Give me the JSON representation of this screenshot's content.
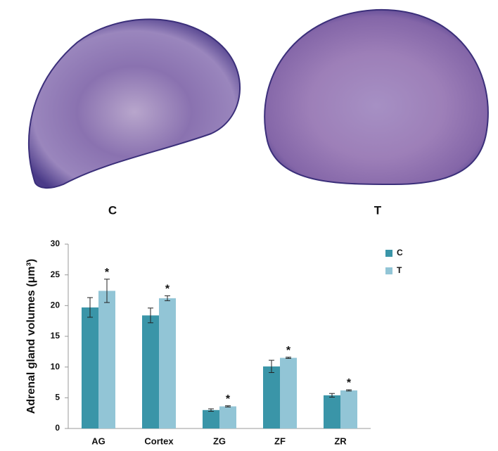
{
  "images": [
    {
      "label": "C"
    },
    {
      "label": "T"
    }
  ],
  "chart_data": {
    "type": "bar",
    "y_label": "Adrenal gland volumes (μm³)",
    "categories": [
      "AG",
      "Cortex",
      "ZG",
      "ZF",
      "ZR"
    ],
    "series": [
      {
        "name": "C",
        "color": "#3a95a8",
        "values": [
          19.7,
          18.4,
          3.0,
          10.1,
          5.4
        ],
        "errors": [
          1.6,
          1.2,
          0.2,
          1.0,
          0.3
        ]
      },
      {
        "name": "T",
        "color": "#92c5d6",
        "values": [
          22.4,
          21.2,
          3.6,
          11.5,
          6.2
        ],
        "errors": [
          1.9,
          0.4,
          0.1,
          0.1,
          0.1
        ]
      }
    ],
    "annotations": [
      "*",
      "*",
      "*",
      "*",
      "*"
    ],
    "ylim": [
      0,
      30
    ],
    "yticks": [
      0,
      5,
      10,
      15,
      20,
      25,
      30
    ],
    "grid": false,
    "legend": "upper right"
  }
}
